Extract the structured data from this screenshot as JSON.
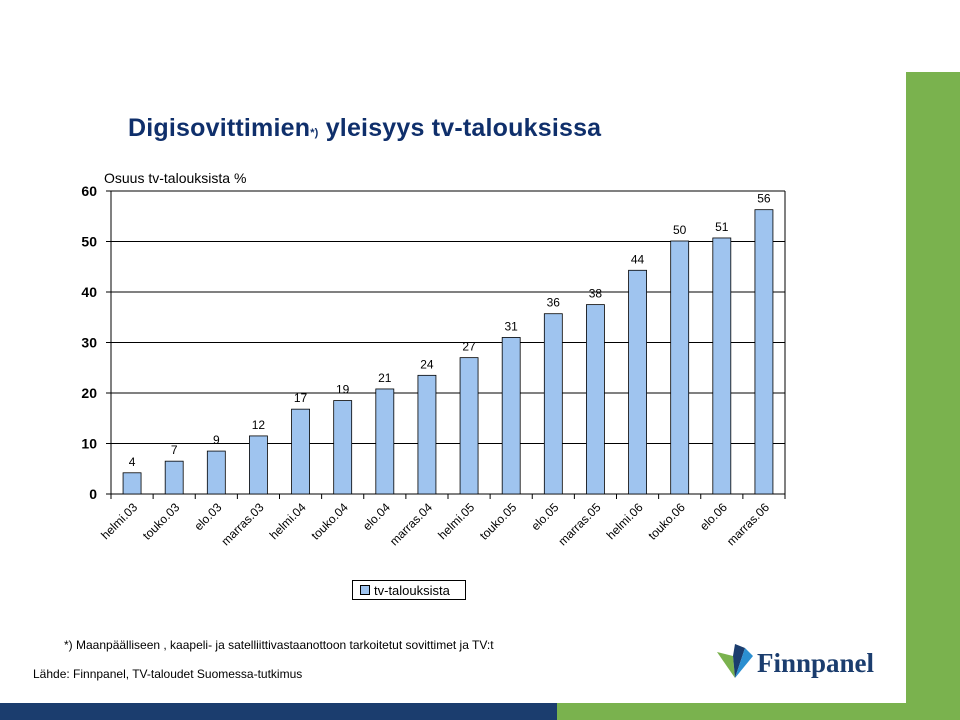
{
  "slide": {
    "title_main": "Digisovittimien",
    "title_sup": "*)",
    "title_rest": " yleisyys tv-talouksissa",
    "footnote": "*) Maanpäälliseen , kaapeli- ja satelliittivastaanottoon tarkoitetut sovittimet ja TV:t",
    "source": "Lähde: Finnpanel, TV-taloudet Suomessa-tutkimus",
    "logo_text": "Finnpanel"
  },
  "colors": {
    "bar": "#9fc4ef",
    "title": "#0f2f6b",
    "accent_green": "#7ab24e",
    "accent_navy": "#1b3d6e"
  },
  "chart_data": {
    "type": "bar",
    "ylabel": "Osuus tv-talouksista  %",
    "ylim": [
      0,
      60
    ],
    "yticks": [
      0,
      10,
      20,
      30,
      40,
      50,
      60
    ],
    "grid": true,
    "legend_position": "bottom",
    "categories": [
      "helmi.03",
      "touko.03",
      "elo.03",
      "marras.03",
      "helmi.04",
      "touko.04",
      "elo.04",
      "marras.04",
      "helmi.05",
      "touko.05",
      "elo.05",
      "marras.05",
      "helmi.06",
      "touko.06",
      "elo.06",
      "marras.06"
    ],
    "series": [
      {
        "name": "tv-talouksista",
        "values": [
          4.2,
          6.5,
          8.5,
          11.5,
          16.8,
          18.5,
          20.8,
          23.5,
          27.0,
          31.0,
          35.7,
          37.5,
          44.3,
          50.1,
          50.7,
          56.3
        ],
        "labels": [
          "4",
          "7",
          "9",
          "12",
          "17",
          "19",
          "21",
          "24",
          "27",
          "31",
          "36",
          "38",
          "44",
          "50",
          "51",
          "56"
        ]
      }
    ]
  }
}
